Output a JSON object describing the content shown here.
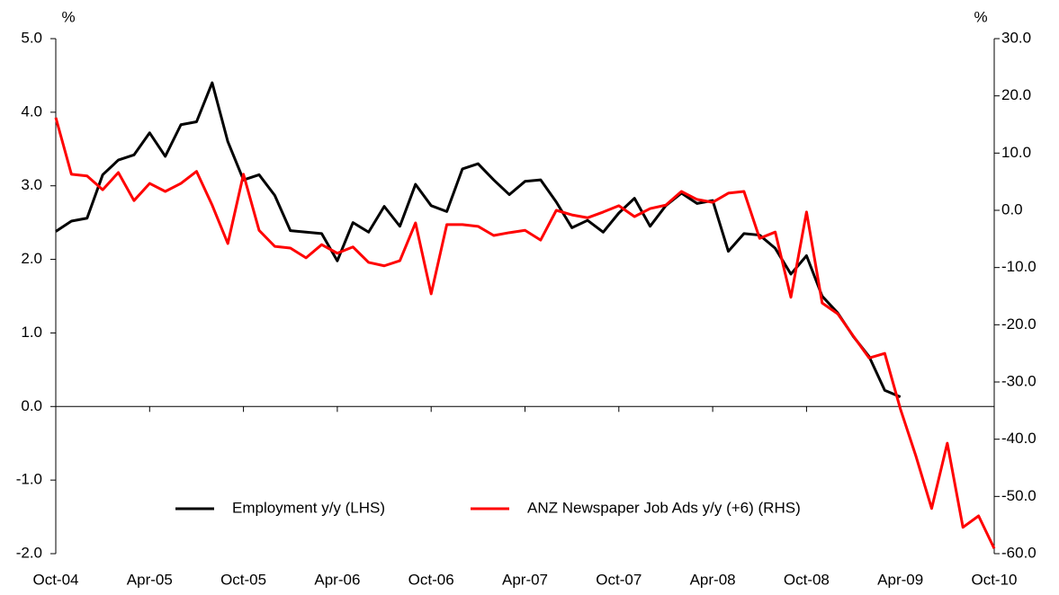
{
  "chart_data": {
    "type": "line",
    "y_unit_label": "%",
    "y2_unit_label": "%",
    "categories": [
      "Oct-04",
      null,
      null,
      null,
      null,
      null,
      "Apr-05",
      null,
      null,
      null,
      null,
      null,
      "Oct-05",
      null,
      null,
      null,
      null,
      null,
      "Apr-06",
      null,
      null,
      null,
      null,
      null,
      "Oct-06",
      null,
      null,
      null,
      null,
      null,
      "Apr-07",
      null,
      null,
      null,
      null,
      null,
      "Oct-07",
      null,
      null,
      null,
      null,
      null,
      "Apr-08",
      null,
      null,
      null,
      null,
      null,
      "Oct-08",
      null,
      null,
      null,
      null,
      null,
      "Apr-09",
      null,
      null,
      null,
      null,
      null,
      "Oct-10"
    ],
    "series": [
      {
        "name": "Employment y/y (LHS)",
        "color": "#000000",
        "axis": "y",
        "values": [
          2.38,
          2.52,
          2.56,
          3.15,
          3.35,
          3.42,
          3.72,
          3.4,
          3.83,
          3.87,
          4.4,
          3.6,
          3.08,
          3.15,
          2.87,
          2.39,
          2.37,
          2.35,
          1.98,
          2.5,
          2.37,
          2.72,
          2.45,
          3.02,
          2.73,
          2.65,
          3.23,
          3.3,
          3.08,
          2.88,
          3.06,
          3.08,
          2.78,
          2.43,
          2.53,
          2.37,
          2.63,
          2.83,
          2.45,
          2.73,
          2.9,
          2.76,
          2.8,
          2.11,
          2.35,
          2.33,
          2.15,
          1.8,
          2.05,
          1.5,
          1.27,
          0.95,
          0.68,
          0.22,
          0.13,
          null,
          null,
          null,
          null,
          null,
          null
        ]
      },
      {
        "name": "ANZ Newspaper Job Ads y/y (+6) (RHS)",
        "color": "#ff0000",
        "axis": "y2",
        "values": [
          16.2,
          6.3,
          6.0,
          3.6,
          6.6,
          1.7,
          4.7,
          3.3,
          4.7,
          6.8,
          0.9,
          -5.8,
          6.3,
          -3.5,
          -6.3,
          -6.6,
          -8.3,
          -6.0,
          -7.5,
          -6.4,
          -9.1,
          -9.7,
          -8.8,
          -2.2,
          -14.6,
          -2.5,
          -2.5,
          -2.8,
          -4.4,
          -3.9,
          -3.5,
          -5.2,
          0,
          -0.8,
          -1.3,
          -0.3,
          0.8,
          -1.1,
          0.3,
          0.9,
          3.3,
          1.9,
          1.4,
          3.0,
          3.3,
          -4.9,
          -3.8,
          -15.2,
          -0.3,
          -16.2,
          -18.1,
          -22.0,
          -25.8,
          -25.0,
          -34.7,
          -43.0,
          -52.1,
          -40.7,
          -55.4,
          -53.4,
          -59.1
        ]
      }
    ],
    "ylim": [
      -2,
      5
    ],
    "yticks": [
      {
        "value": -2,
        "label": "-2.0"
      },
      {
        "value": -1,
        "label": "-1.0"
      },
      {
        "value": 0,
        "label": "0.0"
      },
      {
        "value": 1,
        "label": "1.0"
      },
      {
        "value": 2,
        "label": "2.0"
      },
      {
        "value": 3,
        "label": "3.0"
      },
      {
        "value": 4,
        "label": "4.0"
      },
      {
        "value": 5,
        "label": "5.0"
      }
    ],
    "y2lim": [
      -60,
      30
    ],
    "y2ticks": [
      {
        "value": -60,
        "label": "-60.0"
      },
      {
        "value": -50,
        "label": "-50.0"
      },
      {
        "value": -40,
        "label": "-40.0"
      },
      {
        "value": -30,
        "label": "-30.0"
      },
      {
        "value": -20,
        "label": "-20.0"
      },
      {
        "value": -10,
        "label": "-10.0"
      },
      {
        "value": 0,
        "label": "0.0"
      },
      {
        "value": 10,
        "label": "10.0"
      },
      {
        "value": 20,
        "label": "20.0"
      },
      {
        "value": 30,
        "label": "30.0"
      }
    ],
    "grid": false
  }
}
